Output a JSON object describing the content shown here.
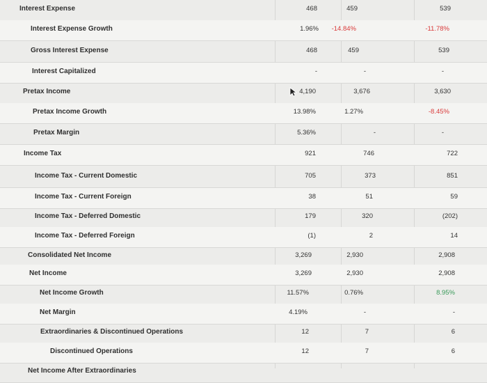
{
  "rows": [
    {
      "label": "Interest Expense",
      "v1": "468",
      "v2": "459",
      "v3": "539"
    },
    {
      "label": "Interest Expense Growth",
      "v1": "1.96%",
      "v2": "-14.84%",
      "v3": "-11.78%"
    },
    {
      "label": "Gross Interest Expense",
      "v1": "468",
      "v2": "459",
      "v3": "539"
    },
    {
      "label": "Interest Capitalized",
      "v1": "-",
      "v2": "-",
      "v3": "-"
    },
    {
      "label": "Pretax Income",
      "v1": "4,190",
      "v2": "3,676",
      "v3": "3,630"
    },
    {
      "label": "Pretax Income Growth",
      "v1": "13.98%",
      "v2": "1.27%",
      "v3": "-8.45%"
    },
    {
      "label": "Pretax Margin",
      "v1": "5.36%",
      "v2": "-",
      "v3": "-"
    },
    {
      "label": "Income Tax",
      "v1": "921",
      "v2": "746",
      "v3": "722"
    },
    {
      "label": "Income Tax - Current Domestic",
      "v1": "705",
      "v2": "373",
      "v3": "851"
    },
    {
      "label": "Income Tax - Current Foreign",
      "v1": "38",
      "v2": "51",
      "v3": "59"
    },
    {
      "label": "Income Tax - Deferred Domestic",
      "v1": "179",
      "v2": "320",
      "v3": "(202)"
    },
    {
      "label": "Income Tax - Deferred Foreign",
      "v1": "(1)",
      "v2": "2",
      "v3": "14"
    },
    {
      "label": "Consolidated Net Income",
      "v1": "3,269",
      "v2": "2,930",
      "v3": "2,908"
    },
    {
      "label": "Net Income",
      "v1": "3,269",
      "v2": "2,930",
      "v3": "2,908"
    },
    {
      "label": "Net Income Growth",
      "v1": "11.57%",
      "v2": "0.76%",
      "v3": "8.95%"
    },
    {
      "label": "Net Margin",
      "v1": "4.19%",
      "v2": "-",
      "v3": "-"
    },
    {
      "label": "Extraordinaries & Discontinued Operations",
      "v1": "12",
      "v2": "7",
      "v3": "6"
    },
    {
      "label": "Discontinued Operations",
      "v1": "12",
      "v2": "7",
      "v3": "6"
    },
    {
      "label": "Net Income After Extraordinaries",
      "v1": "",
      "v2": "",
      "v3": ""
    }
  ],
  "colors": {
    "negative": "#d93a3a",
    "positive": "#3a9a5a"
  },
  "icons": {
    "cursor": "mouse-pointer-icon"
  }
}
